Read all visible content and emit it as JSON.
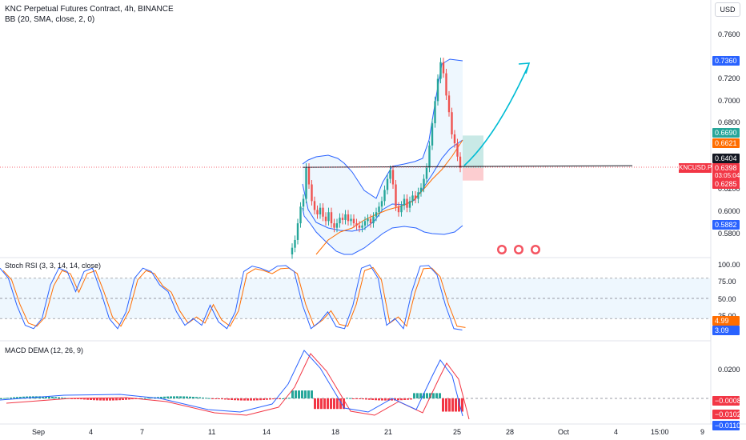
{
  "header": {
    "title": "KNC Perpetual Futures Contract, 4h, BINANCE",
    "indicator": "BB (20, SMA, close, 2, 0)",
    "currency": "USD"
  },
  "colors": {
    "up": "#26a69a",
    "down": "#ef5350",
    "bb": "#2962ff",
    "basis": "#ff6d00",
    "arrow": "#00bcd4",
    "rsi_k": "#2962ff",
    "rsi_d": "#ff6d00"
  },
  "chart_data": [
    {
      "type": "candlestick",
      "title": "KNC Perpetual Futures Contract, 4h, BINANCE",
      "price_ticks": [
        "0.7600",
        "0.7200",
        "0.7000",
        "0.6800",
        "0.6200",
        "0.6000",
        "0.5800"
      ],
      "price_tags": [
        {
          "label": "0.7360",
          "color": "#2962ff"
        },
        {
          "label": "0.6690",
          "color": "#26a69a"
        },
        {
          "label": "0.6621",
          "color": "#ff6d00"
        },
        {
          "label": "0.6404",
          "color": "#131722"
        },
        {
          "label": "0.6398",
          "color": "#f23645"
        },
        {
          "label": "03:05:04",
          "color": "#f23645"
        },
        {
          "label": "0.6285",
          "color": "#f23645"
        },
        {
          "label": "0.5882",
          "color": "#2962ff"
        }
      ],
      "symbol_tag": "KNCUSD.P",
      "horizontal_level": 0.6404,
      "position": {
        "entry": 0.6398,
        "target": 0.669,
        "stop": 0.6285
      },
      "x_labels": [
        "Sep",
        "4",
        "7",
        "11",
        "14",
        "18",
        "21",
        "25",
        "28",
        "Oct",
        "4",
        "15:00",
        "9"
      ]
    },
    {
      "type": "line",
      "title": "Stoch RSI (3, 3, 14, 14, close)",
      "y_ticks": [
        "100.00",
        "75.00",
        "50.00",
        "25.00"
      ],
      "tags": [
        {
          "label": "4.99",
          "color": "#ff6d00"
        },
        {
          "label": "3.09",
          "color": "#2962ff"
        }
      ]
    },
    {
      "type": "histogram",
      "title": "MACD DEMA (12, 26, 9)",
      "y_ticks": [
        "0.0200"
      ],
      "tags": [
        {
          "label": "−0.0008",
          "color": "#f23645"
        },
        {
          "label": "−0.0102",
          "color": "#f23645"
        },
        {
          "label": "−0.0110",
          "color": "#2962ff"
        }
      ]
    }
  ]
}
